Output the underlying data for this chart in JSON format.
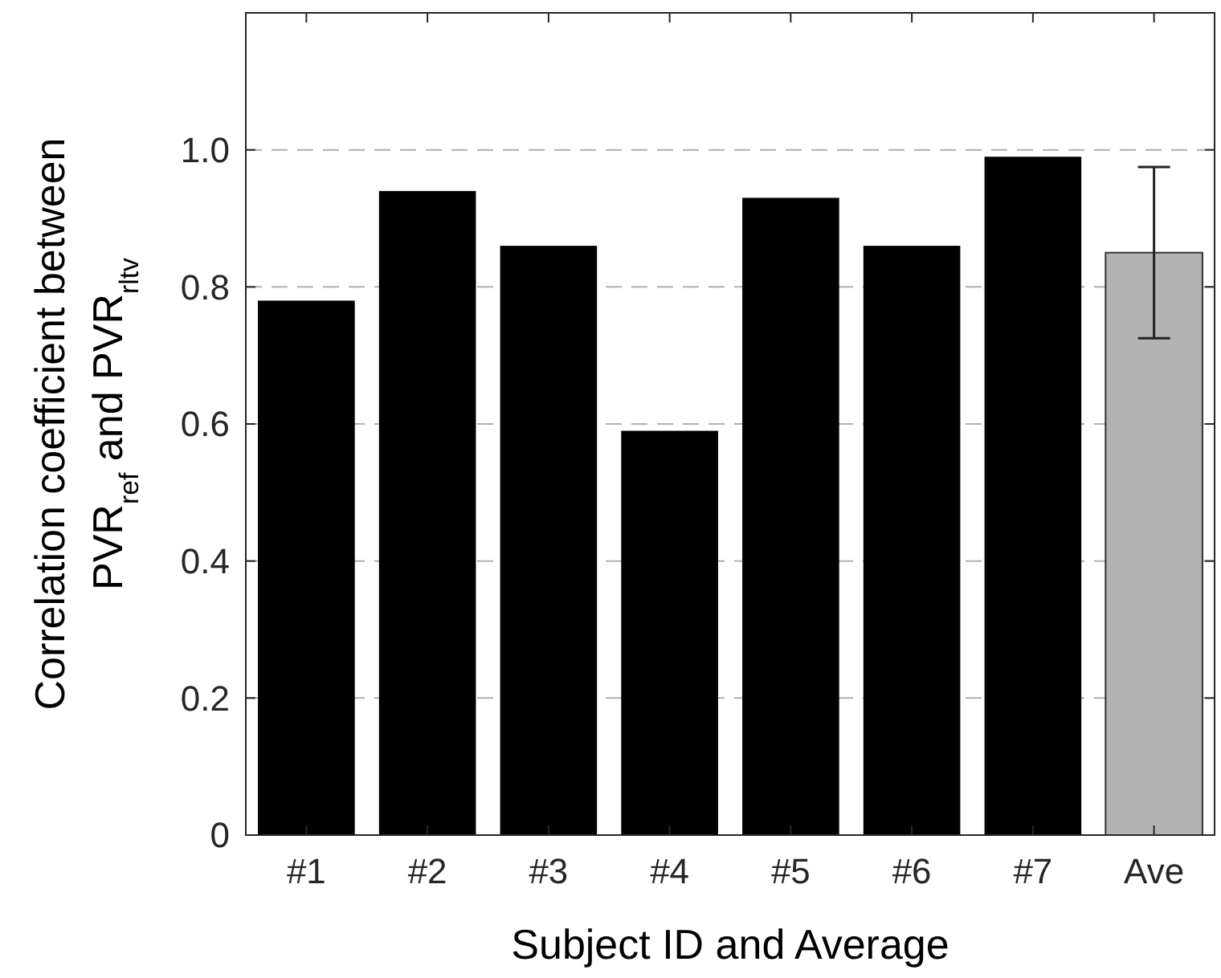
{
  "chart_data": {
    "type": "bar",
    "xlabel": "Subject ID and Average",
    "ylabel": "Correlation coefficient between\nPVR$_{ref}$ and PVR$_{rltv}$",
    "categories": [
      "#1",
      "#2",
      "#3",
      "#4",
      "#5",
      "#6",
      "#7",
      "Ave"
    ],
    "values": [
      0.78,
      0.94,
      0.86,
      0.59,
      0.93,
      0.86,
      0.99,
      0.85
    ],
    "colors": [
      "#000000",
      "#000000",
      "#000000",
      "#000000",
      "#000000",
      "#000000",
      "#000000",
      "#b3b3b3"
    ],
    "errors": [
      null,
      null,
      null,
      null,
      null,
      null,
      null,
      0.125
    ],
    "ylim": [
      0,
      1.2
    ],
    "yticks": [
      0,
      {
        "value": 0.2,
        "label": "0.2"
      },
      {
        "value": 0.4,
        "label": "0.4"
      },
      {
        "value": 0.6,
        "label": "0.6"
      },
      {
        "value": 0.8,
        "label": "0.8"
      },
      {
        "value": 1,
        "label": "1.0"
      }
    ],
    "grid": "y"
  }
}
